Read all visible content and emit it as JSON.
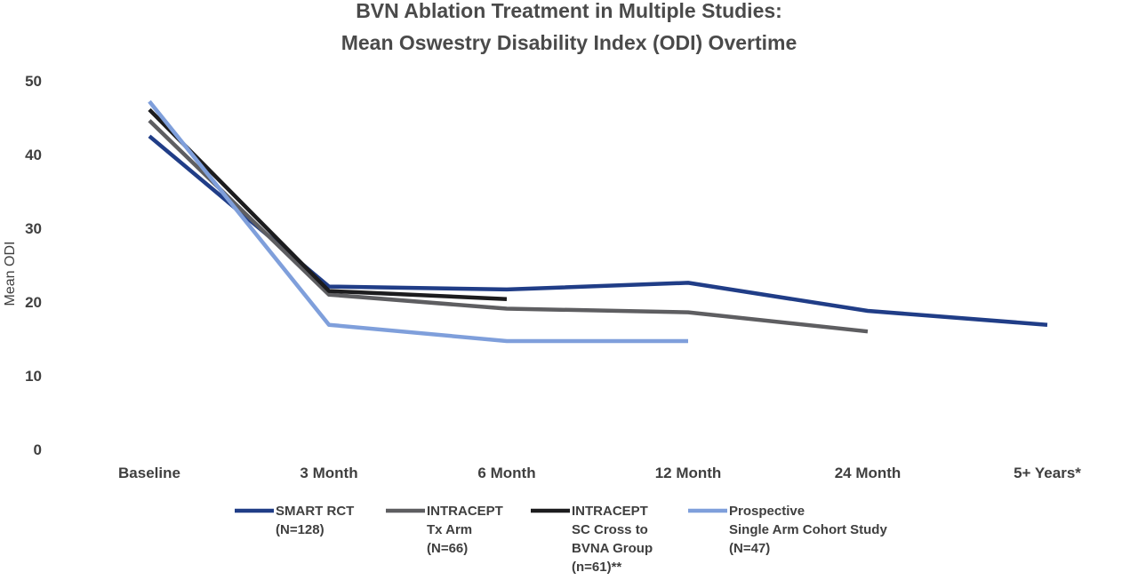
{
  "chart_data": {
    "type": "line",
    "title": [
      "BVN Ablation Treatment in Multiple Studies:",
      "Mean Oswestry Disability Index (ODI) Overtime"
    ],
    "xlabel": "",
    "ylabel": "Mean ODI",
    "ylim": [
      0,
      50
    ],
    "yticks": [
      "0",
      "10",
      "20",
      "30",
      "40",
      "50"
    ],
    "categories": [
      "Baseline",
      "3 Month",
      "6 Month",
      "12 Month",
      "24 Month",
      "5+ Years*"
    ],
    "grid": false,
    "legend_position": "bottom",
    "series": [
      {
        "name": [
          "SMART RCT",
          "(N=128)"
        ],
        "color": "#203d87",
        "values": [
          42.5,
          22.1,
          21.7,
          22.6,
          18.8,
          16.9
        ]
      },
      {
        "name": [
          "INTRACEPT",
          "Tx Arm",
          "(N=66)"
        ],
        "color": "#5e5e61",
        "values": [
          44.6,
          21.0,
          19.1,
          18.6,
          16.0,
          null
        ]
      },
      {
        "name": [
          "INTRACEPT",
          "SC Cross to",
          "BVNA Group",
          "(n=61)**"
        ],
        "color": "#1c1c1e",
        "values": [
          46.1,
          21.5,
          20.4,
          null,
          null,
          null
        ]
      },
      {
        "name": [
          "Prospective",
          "Single Arm Cohort Study",
          "(N=47)"
        ],
        "color": "#7f9fdb",
        "values": [
          47.2,
          16.9,
          14.7,
          14.7,
          null,
          null
        ]
      }
    ]
  }
}
